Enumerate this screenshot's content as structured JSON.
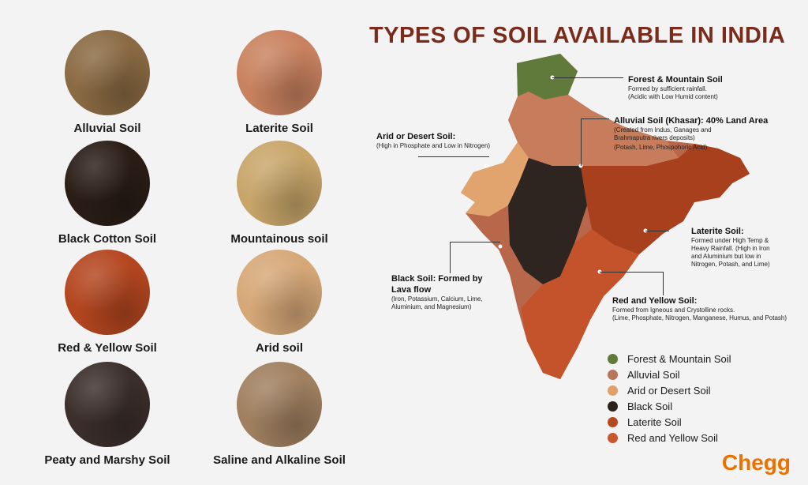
{
  "title": "TYPES OF SOIL AVAILABLE IN INDIA",
  "soils": [
    {
      "label": "Alluvial Soil",
      "color": "#8a6a43"
    },
    {
      "label": "Laterite Soil",
      "color": "#c9825f"
    },
    {
      "label": "Black Cotton Soil",
      "color": "#2a1d16"
    },
    {
      "label": "Mountainous soil",
      "color": "#c8a66a"
    },
    {
      "label": "Red & Yellow Soil",
      "color": "#b4461f"
    },
    {
      "label": "Arid soil",
      "color": "#d6a878"
    },
    {
      "label": "Peaty and Marshy Soil",
      "color": "#3b2e2b"
    },
    {
      "label": "Saline and Alkaline Soil",
      "color": "#a08060"
    }
  ],
  "callouts": {
    "forest": {
      "heading": "Forest & Mountain Soil",
      "lines": [
        "Formed by sufficient rainfall.",
        "(Acidic with Low Humid content)"
      ]
    },
    "alluvial": {
      "heading": "Alluvial Soil (Khasar): 40% Land Area",
      "lines": [
        "(Created from Indus, Ganages and",
        "Brahmaputra rivers deposits)",
        "(Potash, Lime, Phospohoric Acid)"
      ]
    },
    "arid": {
      "heading": "Arid or Desert Soil:",
      "lines": [
        "(High in Phosphate and Low in Nitrogen)"
      ]
    },
    "laterite": {
      "heading": "Laterite Soil:",
      "lines": [
        "Formed under High Temp &",
        "Heavy Rainfall. (High in Iron",
        "and Aluminium but low in",
        "Nitrogen, Potash, and Lime)"
      ]
    },
    "black": {
      "heading": "Black Soil: Formed by Lava flow",
      "lines": [
        "(Iron, Potassium, Calcium, Lime,",
        "Aluminium, and Magnesium)"
      ]
    },
    "redyellow": {
      "heading": "Red and Yellow Soil:",
      "lines": [
        "Formed from Igneous and Crystolline rocks.",
        "(Lime, Phosphate, Nitrogen, Manganese, Humus, and Potash)"
      ]
    }
  },
  "legend": [
    {
      "label": "Forest & Mountain Soil",
      "color": "#5f7a3a"
    },
    {
      "label": "Alluvial Soil",
      "color": "#b7755c"
    },
    {
      "label": "Arid or Desert Soil",
      "color": "#e0a06a"
    },
    {
      "label": "Black Soil",
      "color": "#2b211c"
    },
    {
      "label": "Laterite Soil",
      "color": "#b34a23"
    },
    {
      "label": "Red and Yellow Soil",
      "color": "#c9572f"
    }
  ],
  "brand": "Chegg"
}
